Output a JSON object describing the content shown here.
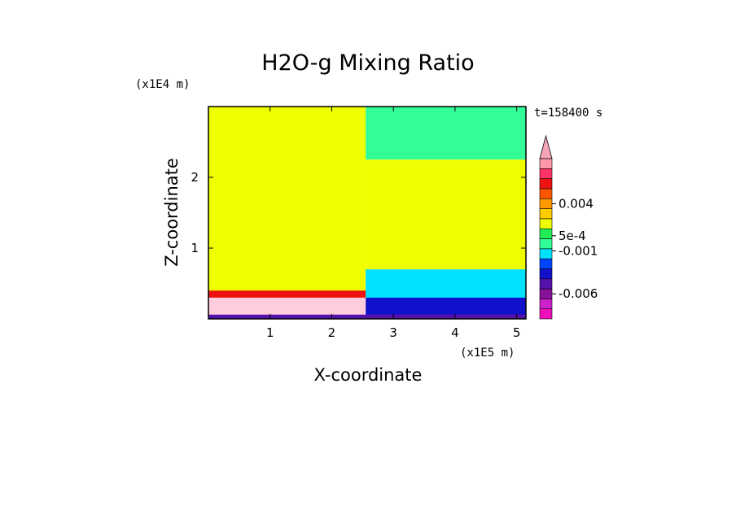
{
  "chart_data": {
    "type": "heatmap",
    "title": "H2O-g Mixing Ratio",
    "xlabel": "X-coordinate",
    "ylabel": "Z-coordinate",
    "x_multiplier": "(x1E5 m)",
    "y_multiplier": "(x1E4 m)",
    "time_label": "t=158400 s",
    "xlim": [
      0,
      5.15
    ],
    "ylim": [
      0,
      3.0
    ],
    "x_ticks": [
      1,
      2,
      3,
      4,
      5
    ],
    "x_tick_labels": [
      "1",
      "2",
      "3",
      "4",
      "5"
    ],
    "y_ticks": [
      1,
      2
    ],
    "y_tick_labels": [
      "1",
      "2"
    ],
    "colorbar": {
      "colors": [
        "#ee11bb",
        "#cc22cc",
        "#881199",
        "#5511aa",
        "#1111cc",
        "#0044ff",
        "#00e0ff",
        "#33ff99",
        "#22ee55",
        "#f0ff00",
        "#ffcc00",
        "#ff9900",
        "#ff5500",
        "#ee1111",
        "#ff3366",
        "#ff99aa"
      ],
      "tick_labels": [
        "-0.006",
        "-0.001",
        "5e-4",
        "0.004"
      ],
      "tick_levels": [
        2.5,
        6.8,
        8.3,
        11.5
      ],
      "extend_top_color": "#f5a5b5"
    },
    "regions": [
      {
        "x": [
          0,
          2.55
        ],
        "z": [
          0,
          3.0
        ],
        "color": "#f0ff00"
      },
      {
        "x": [
          2.55,
          5.15
        ],
        "z": [
          2.25,
          3.0
        ],
        "color": "#33ff99"
      },
      {
        "x": [
          2.55,
          5.15
        ],
        "z": [
          0.7,
          2.25
        ],
        "color": "#f0ff00"
      },
      {
        "x": [
          2.55,
          5.15
        ],
        "z": [
          0,
          0.7
        ],
        "color": "#00e0ff"
      },
      {
        "x": [
          2.55,
          5.15
        ],
        "z": [
          0,
          0.3
        ],
        "color": "#1111cc"
      },
      {
        "x": [
          0,
          2.55
        ],
        "z": [
          0.15,
          0.4
        ],
        "color": "#ee1111"
      },
      {
        "x": [
          0,
          2.55
        ],
        "z": [
          0.05,
          0.3
        ],
        "color": "#ffccdd"
      },
      {
        "x": [
          0,
          5.15
        ],
        "z": [
          0,
          0.06
        ],
        "color": "#5511aa"
      }
    ]
  }
}
